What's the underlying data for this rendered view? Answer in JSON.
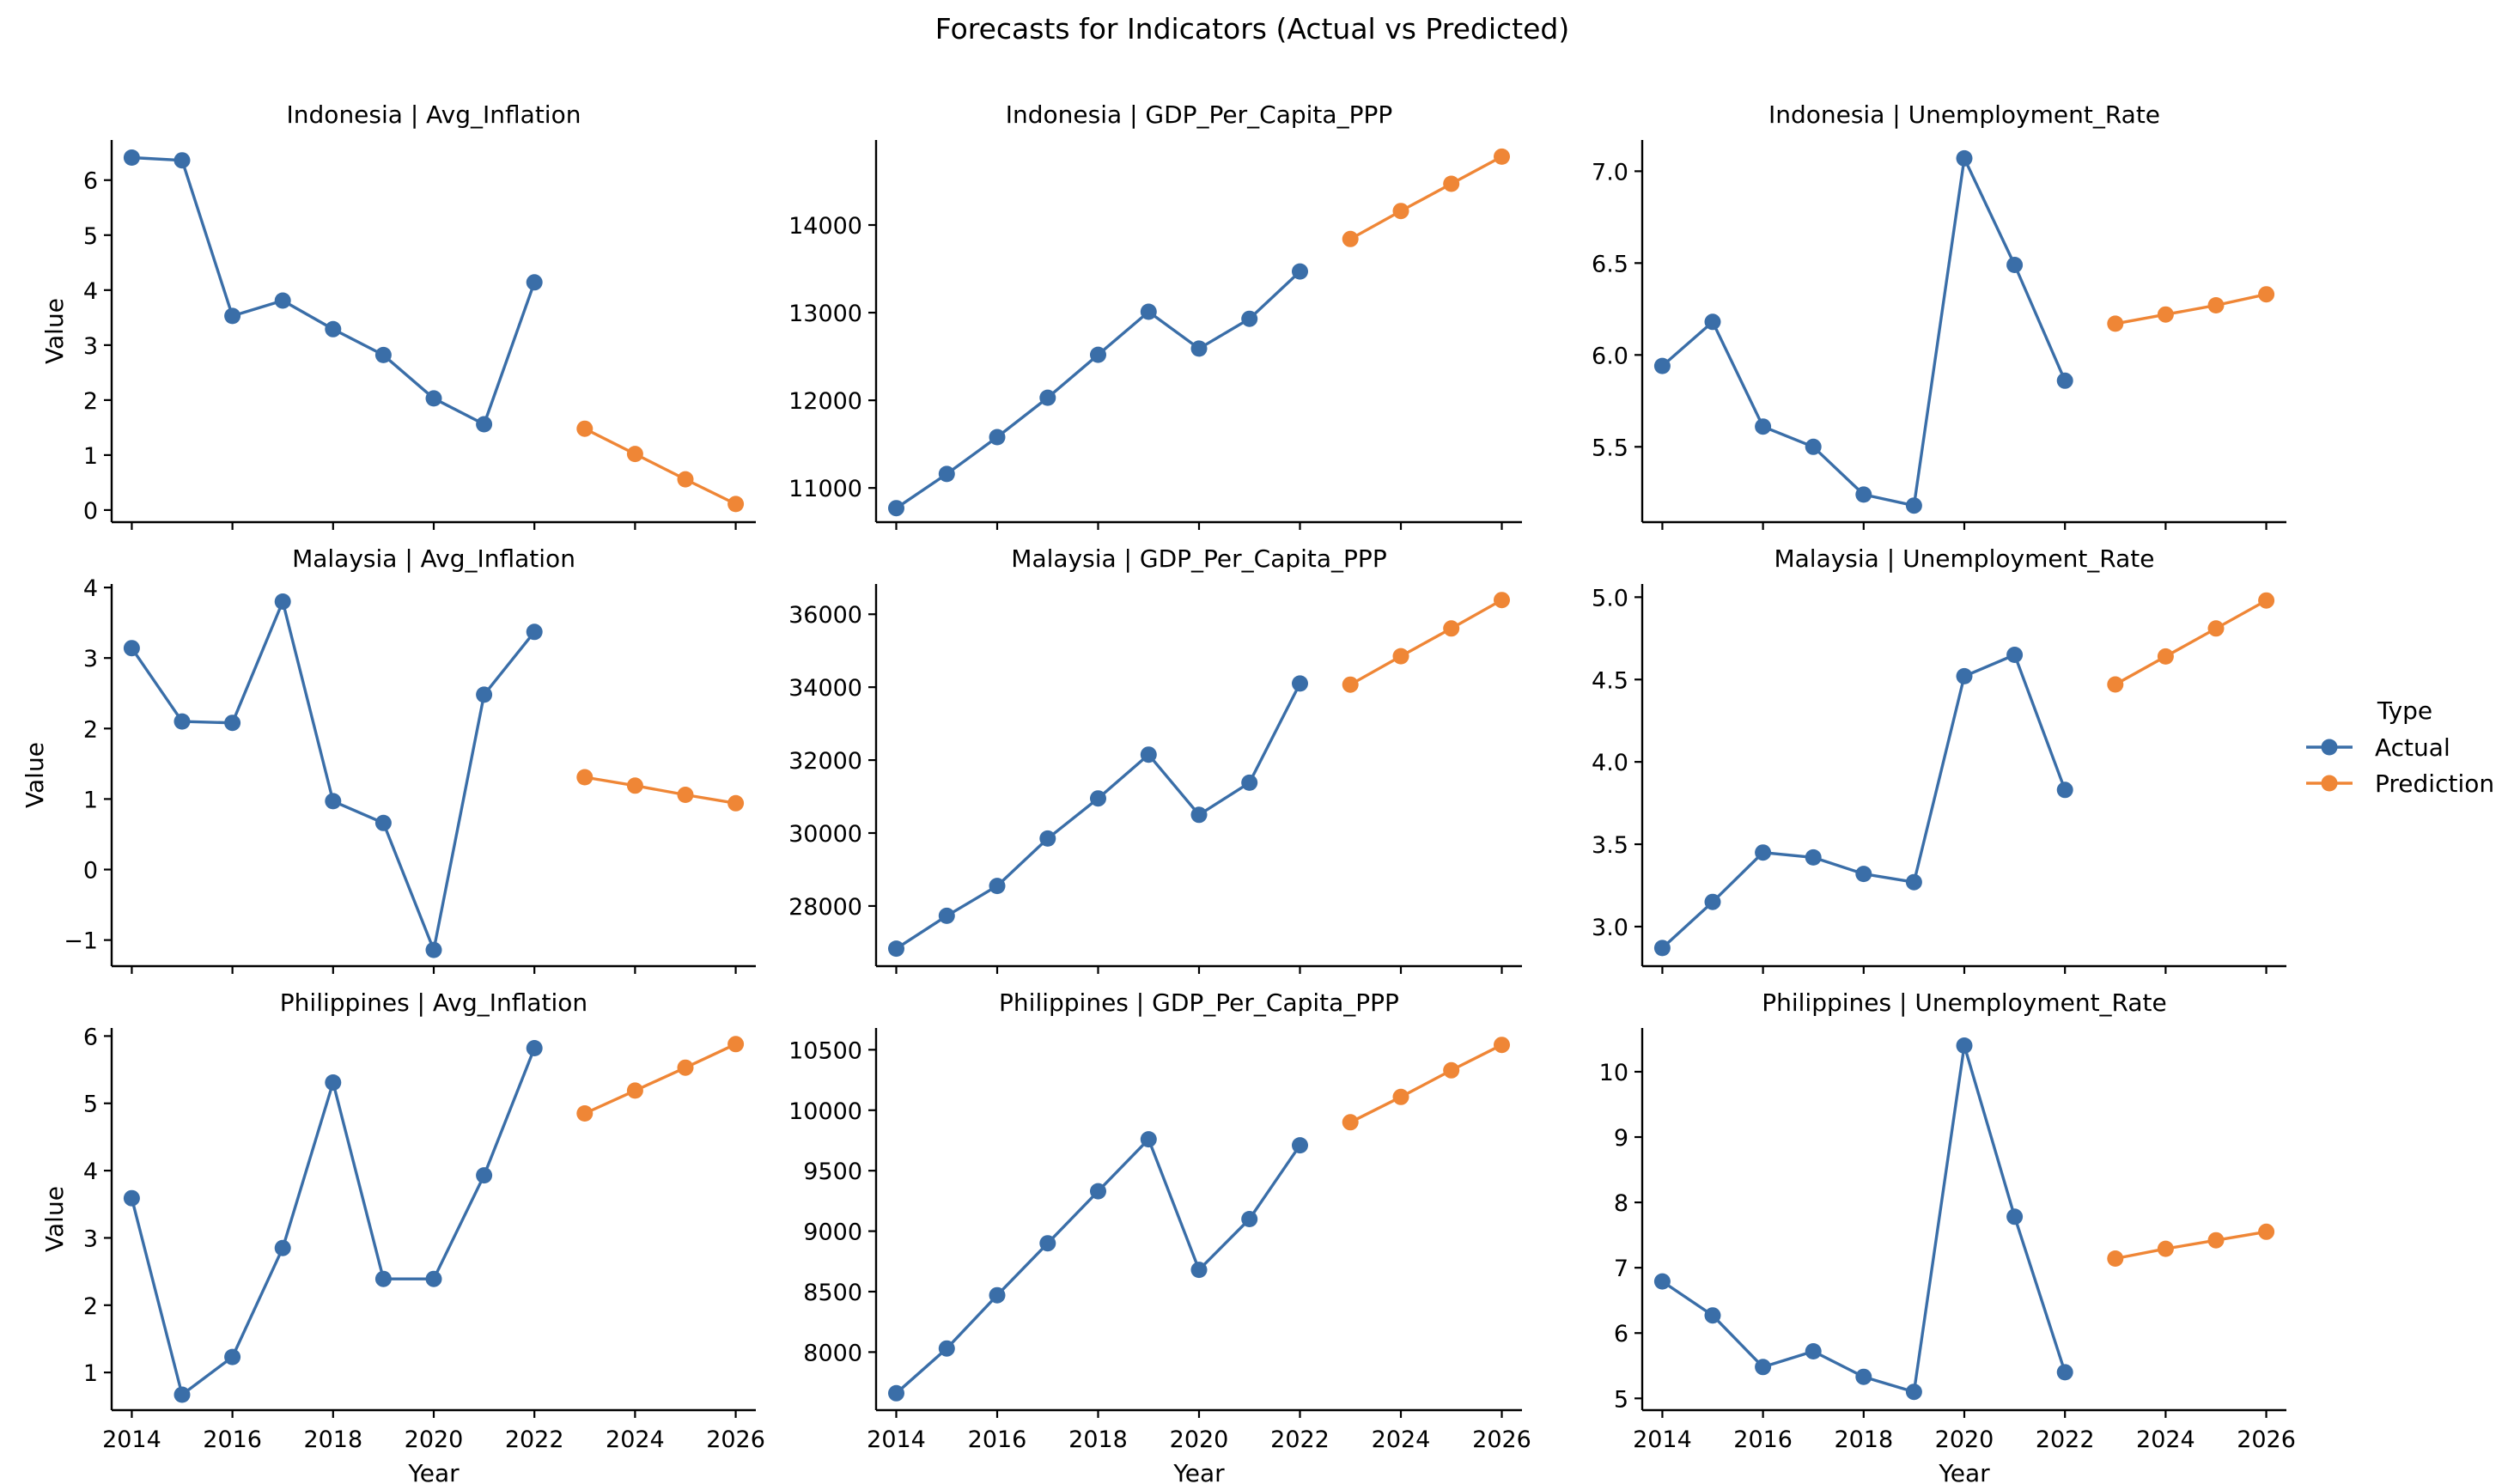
{
  "figure": {
    "title": "Forecasts for Indicators (Actual vs Predicted)"
  },
  "legend": {
    "title": "Type",
    "placement": "right",
    "entries": [
      {
        "label": "Actual",
        "color": "#3a6ea8"
      },
      {
        "label": "Prediction",
        "color": "#ef8636"
      }
    ]
  },
  "chart_data": [
    {
      "type": "line",
      "title": "Indonesia | Avg_Inflation",
      "xlabel": "",
      "ylabel": "Value",
      "xlim": [
        2013.6,
        2026.4
      ],
      "ylim": [
        -0.22,
        6.73
      ],
      "xticks": [
        2014,
        2016,
        2018,
        2020,
        2022,
        2024,
        2026
      ],
      "yticks": [
        0,
        1,
        2,
        3,
        4,
        5,
        6
      ],
      "series": [
        {
          "name": "Actual",
          "x": [
            2014,
            2015,
            2016,
            2017,
            2018,
            2019,
            2020,
            2021,
            2022
          ],
          "y": [
            6.41,
            6.36,
            3.53,
            3.81,
            3.29,
            2.82,
            2.03,
            1.56,
            4.14
          ]
        },
        {
          "name": "Prediction",
          "x": [
            2023,
            2024,
            2025,
            2026
          ],
          "y": [
            1.48,
            1.02,
            0.56,
            0.11
          ]
        }
      ]
    },
    {
      "type": "line",
      "title": "Indonesia | GDP_Per_Capita_PPP",
      "xlabel": "",
      "ylabel": "",
      "xlim": [
        2013.6,
        2026.4
      ],
      "ylim": [
        10610,
        14970
      ],
      "xticks": [
        2014,
        2016,
        2018,
        2020,
        2022,
        2024,
        2026
      ],
      "yticks": [
        11000,
        12000,
        13000,
        14000
      ],
      "series": [
        {
          "name": "Actual",
          "x": [
            2014,
            2015,
            2016,
            2017,
            2018,
            2019,
            2020,
            2021,
            2022
          ],
          "y": [
            10770,
            11160,
            11580,
            12030,
            12520,
            13010,
            12590,
            12930,
            13470
          ]
        },
        {
          "name": "Prediction",
          "x": [
            2023,
            2024,
            2025,
            2026
          ],
          "y": [
            13840,
            14160,
            14470,
            14780
          ]
        }
      ]
    },
    {
      "type": "line",
      "title": "Indonesia | Unemployment_Rate",
      "xlabel": "",
      "ylabel": "",
      "xlim": [
        2013.6,
        2026.4
      ],
      "ylim": [
        5.09,
        7.17
      ],
      "xticks": [
        2014,
        2016,
        2018,
        2020,
        2022,
        2024,
        2026
      ],
      "yticks": [
        5.5,
        6.0,
        6.5,
        7.0
      ],
      "tick_labels": [
        "5.5",
        "6.0",
        "6.5",
        "7.0"
      ],
      "series": [
        {
          "name": "Actual",
          "x": [
            2014,
            2015,
            2016,
            2017,
            2018,
            2019,
            2020,
            2021,
            2022
          ],
          "y": [
            5.94,
            6.18,
            5.61,
            5.5,
            5.24,
            5.18,
            7.07,
            6.49,
            5.86
          ]
        },
        {
          "name": "Prediction",
          "x": [
            2023,
            2024,
            2025,
            2026
          ],
          "y": [
            6.17,
            6.22,
            6.27,
            6.33
          ]
        }
      ]
    },
    {
      "type": "line",
      "title": "Malaysia | Avg_Inflation",
      "xlabel": "",
      "ylabel": "Value",
      "xlim": [
        2013.6,
        2026.4
      ],
      "ylim": [
        -1.37,
        4.05
      ],
      "xticks": [
        2014,
        2016,
        2018,
        2020,
        2022,
        2024,
        2026
      ],
      "yticks": [
        -1,
        0,
        1,
        2,
        3,
        4
      ],
      "tick_labels": [
        "−1",
        "0",
        "1",
        "2",
        "3",
        "4"
      ],
      "series": [
        {
          "name": "Actual",
          "x": [
            2014,
            2015,
            2016,
            2017,
            2018,
            2019,
            2020,
            2021,
            2022
          ],
          "y": [
            3.14,
            2.1,
            2.08,
            3.8,
            0.97,
            0.66,
            -1.14,
            2.48,
            3.37
          ]
        },
        {
          "name": "Prediction",
          "x": [
            2023,
            2024,
            2025,
            2026
          ],
          "y": [
            1.31,
            1.19,
            1.06,
            0.94
          ]
        }
      ]
    },
    {
      "type": "line",
      "title": "Malaysia | GDP_Per_Capita_PPP",
      "xlabel": "",
      "ylabel": "",
      "xlim": [
        2013.6,
        2026.4
      ],
      "ylim": [
        26350,
        36830
      ],
      "xticks": [
        2014,
        2016,
        2018,
        2020,
        2022,
        2024,
        2026
      ],
      "yticks": [
        28000,
        30000,
        32000,
        34000,
        36000
      ],
      "series": [
        {
          "name": "Actual",
          "x": [
            2014,
            2015,
            2016,
            2017,
            2018,
            2019,
            2020,
            2021,
            2022
          ],
          "y": [
            26830,
            27730,
            28550,
            29850,
            30950,
            32150,
            30500,
            31380,
            34100
          ]
        },
        {
          "name": "Prediction",
          "x": [
            2023,
            2024,
            2025,
            2026
          ],
          "y": [
            34070,
            34850,
            35610,
            36390
          ]
        }
      ]
    },
    {
      "type": "line",
      "title": "Malaysia | Unemployment_Rate",
      "xlabel": "",
      "ylabel": "",
      "xlim": [
        2013.6,
        2026.4
      ],
      "ylim": [
        2.76,
        5.08
      ],
      "xticks": [
        2014,
        2016,
        2018,
        2020,
        2022,
        2024,
        2026
      ],
      "yticks": [
        3.0,
        3.5,
        4.0,
        4.5,
        5.0
      ],
      "tick_labels": [
        "3.0",
        "3.5",
        "4.0",
        "4.5",
        "5.0"
      ],
      "series": [
        {
          "name": "Actual",
          "x": [
            2014,
            2015,
            2016,
            2017,
            2018,
            2019,
            2020,
            2021,
            2022
          ],
          "y": [
            2.87,
            3.15,
            3.45,
            3.42,
            3.32,
            3.27,
            4.52,
            4.65,
            3.83
          ]
        },
        {
          "name": "Prediction",
          "x": [
            2023,
            2024,
            2025,
            2026
          ],
          "y": [
            4.47,
            4.64,
            4.81,
            4.98
          ]
        }
      ]
    },
    {
      "type": "line",
      "title": "Philippines | Avg_Inflation",
      "xlabel": "Year",
      "ylabel": "Value",
      "xlim": [
        2013.6,
        2026.4
      ],
      "ylim": [
        0.44,
        6.12
      ],
      "xticks": [
        2014,
        2016,
        2018,
        2020,
        2022,
        2024,
        2026
      ],
      "yticks": [
        1,
        2,
        3,
        4,
        5,
        6
      ],
      "series": [
        {
          "name": "Actual",
          "x": [
            2014,
            2015,
            2016,
            2017,
            2018,
            2019,
            2020,
            2021,
            2022
          ],
          "y": [
            3.59,
            0.67,
            1.23,
            2.85,
            5.31,
            2.39,
            2.39,
            3.93,
            5.82
          ]
        },
        {
          "name": "Prediction",
          "x": [
            2023,
            2024,
            2025,
            2026
          ],
          "y": [
            4.85,
            5.19,
            5.53,
            5.88
          ]
        }
      ]
    },
    {
      "type": "line",
      "title": "Philippines | GDP_Per_Capita_PPP",
      "xlabel": "Year",
      "ylabel": "",
      "xlim": [
        2013.6,
        2026.4
      ],
      "ylim": [
        7520,
        10680
      ],
      "xticks": [
        2014,
        2016,
        2018,
        2020,
        2022,
        2024,
        2026
      ],
      "yticks": [
        8000,
        8500,
        9000,
        9500,
        10000,
        10500
      ],
      "series": [
        {
          "name": "Actual",
          "x": [
            2014,
            2015,
            2016,
            2017,
            2018,
            2019,
            2020,
            2021,
            2022
          ],
          "y": [
            7660,
            8030,
            8470,
            8900,
            9330,
            9760,
            8680,
            9100,
            9710
          ]
        },
        {
          "name": "Prediction",
          "x": [
            2023,
            2024,
            2025,
            2026
          ],
          "y": [
            9900,
            10110,
            10330,
            10540
          ]
        }
      ]
    },
    {
      "type": "line",
      "title": "Philippines | Unemployment_Rate",
      "xlabel": "Year",
      "ylabel": "",
      "xlim": [
        2013.6,
        2026.4
      ],
      "ylim": [
        4.82,
        10.67
      ],
      "xticks": [
        2014,
        2016,
        2018,
        2020,
        2022,
        2024,
        2026
      ],
      "yticks": [
        5,
        6,
        7,
        8,
        9,
        10
      ],
      "series": [
        {
          "name": "Actual",
          "x": [
            2014,
            2015,
            2016,
            2017,
            2018,
            2019,
            2020,
            2021,
            2022
          ],
          "y": [
            6.79,
            6.27,
            5.48,
            5.72,
            5.33,
            5.1,
            10.4,
            7.78,
            5.4
          ]
        },
        {
          "name": "Prediction",
          "x": [
            2023,
            2024,
            2025,
            2026
          ],
          "y": [
            7.14,
            7.29,
            7.42,
            7.55
          ]
        }
      ]
    }
  ]
}
